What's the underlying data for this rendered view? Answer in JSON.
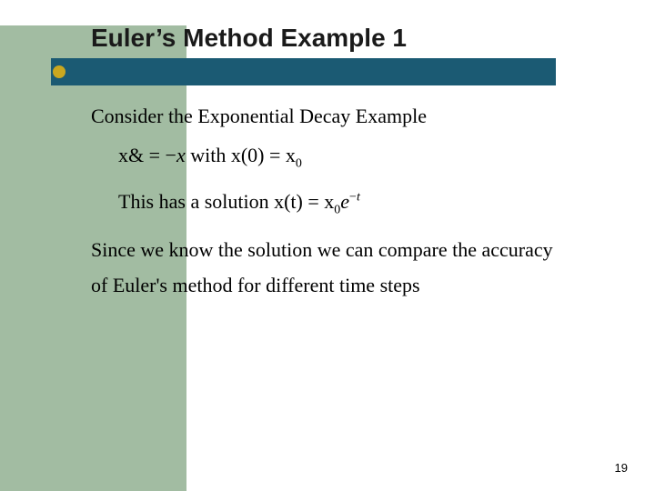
{
  "layout": {
    "sidebar_color": "#a2bca2",
    "title_bar_color": "#1b5a73",
    "bullet_color": "#caa71f",
    "background_color": "#ffffff"
  },
  "typography": {
    "title_fontsize": 28,
    "body_fontsize": 22,
    "page_number_fontsize": 13
  },
  "slide": {
    "title": "Euler’s Method Example 1",
    "line1": "Consider the Exponential Decay Example",
    "equation_lhs": "x&",
    "equation_eq": " = ",
    "equation_rhs_neg": "−",
    "equation_rhs_x": "x",
    "equation_with": "     with x(0)  =  x",
    "equation_sub0": "0",
    "line3_a": "This has a solution x(t)  =  x",
    "line3_sub0": "0",
    "line3_e": "e",
    "line3_exp_neg": "−",
    "line3_exp_t": "t",
    "line4": "Since we know the solution we can compare the accuracy",
    "line5": "of Euler's method for different time steps",
    "page_number": "19"
  }
}
